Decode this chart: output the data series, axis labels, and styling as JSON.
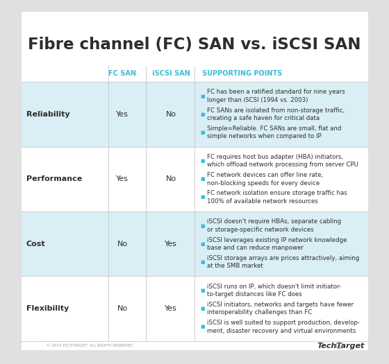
{
  "title": "Fibre channel (FC) SAN vs. iSCSI SAN",
  "title_color": "#2d2d2d",
  "background_color": "#e0e0e0",
  "table_bg": "#ffffff",
  "header_color": "#3bbdd4",
  "row_bg_alt": "#daeef5",
  "row_bg_white": "#ffffff",
  "col_headers": [
    "FC SAN",
    "iSCSI SAN",
    "SUPPORTING POINTS"
  ],
  "rows": [
    {
      "category": "Reliability",
      "fc_san": "Yes",
      "iscsi_san": "No",
      "points": [
        "FC has been a ratified standard for nine years\nlonger than iSCSI (1994 vs. 2003)",
        "FC SANs are isolated from non-storage traffic,\ncreating a safe haven for critical data",
        "Simple=Reliable. FC SANs are small, flat and\nsimple networks when compared to IP"
      ]
    },
    {
      "category": "Performance",
      "fc_san": "Yes",
      "iscsi_san": "No",
      "points": [
        "FC requires host bus adapter (HBA) initiators,\nwhich offload network processing from server CPU",
        "FC network devices can offer line rate,\nnon-blocking speeds for every device",
        "FC network isolation ensure storage traffic has\n100% of available network resources"
      ]
    },
    {
      "category": "Cost",
      "fc_san": "No",
      "iscsi_san": "Yes",
      "points": [
        "iSCSI doesn't require HBAs, separate cabling\nor storage-specific network devices",
        "iSCSI leverages existing IP network knowledge\nbase and can reduce manpower",
        "iSCSI storage arrays are prices attractively, aiming\nat the SMB market"
      ]
    },
    {
      "category": "Flexibility",
      "fc_san": "No",
      "iscsi_san": "Yes",
      "points": [
        "iSCSI runs on IP, which doesn't limit initiator-\nto-target distances like FC does",
        "iSCSI initiators, networks and targets have fewer\ninteroperability challenges than FC",
        "iSCSI is well suited to support production, develop-\nment, disaster recovery and virtual environments"
      ]
    }
  ],
  "bullet_color": "#3bbdd4",
  "separator_color": "#c8c8c8",
  "footer_text": "TechTarget",
  "copyright_text": "© 2014 TECHTARGET. ALL RIGHTS RESERVED."
}
